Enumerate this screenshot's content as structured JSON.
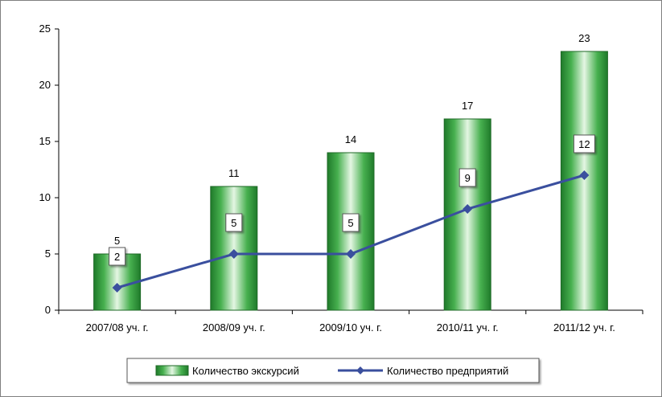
{
  "chart_data": {
    "type": "bar+line",
    "categories": [
      "2007/08 уч. г.",
      "2008/09 уч. г.",
      "2009/10 уч. г.",
      "2010/11 уч. г.",
      "2011/12 уч. г."
    ],
    "series": [
      {
        "name": "Количество экскурсий",
        "type": "bar",
        "values": [
          5,
          11,
          14,
          17,
          23
        ],
        "color": "#2e9e3a"
      },
      {
        "name": "Количество предприятий",
        "type": "line",
        "values": [
          2,
          5,
          5,
          9,
          12
        ],
        "color": "#3a4f9e"
      }
    ],
    "yticks": [
      0,
      5,
      10,
      15,
      20,
      25
    ],
    "ylim": [
      0,
      25
    ],
    "grid": false,
    "legend_position": "bottom"
  }
}
